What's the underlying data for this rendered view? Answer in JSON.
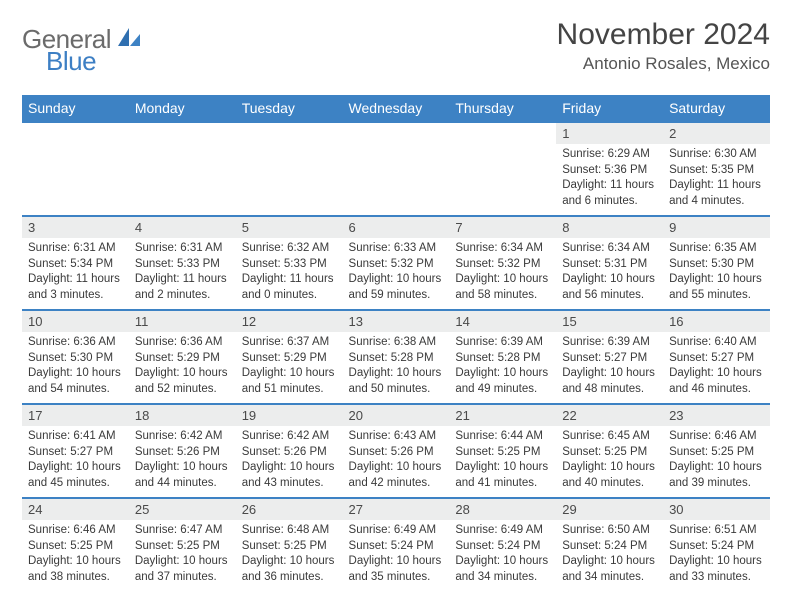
{
  "brand": {
    "word1": "General",
    "word2": "Blue"
  },
  "title": "November 2024",
  "location": "Antonio Rosales, Mexico",
  "colors": {
    "brand_blue": "#3d82c4",
    "logo_gray": "#6b6b6b",
    "header_bg": "#3d82c4",
    "header_fg": "#ffffff",
    "daynum_bg": "#eceded",
    "text": "#3a3a3a",
    "row_border": "#3d82c4"
  },
  "typography": {
    "title_fontsize": 30,
    "location_fontsize": 17,
    "dow_fontsize": 14,
    "daynum_fontsize": 13,
    "body_fontsize": 11.5
  },
  "days_of_week": [
    "Sunday",
    "Monday",
    "Tuesday",
    "Wednesday",
    "Thursday",
    "Friday",
    "Saturday"
  ],
  "weeks": [
    [
      {
        "empty": true
      },
      {
        "empty": true
      },
      {
        "empty": true
      },
      {
        "empty": true
      },
      {
        "empty": true
      },
      {
        "n": "1",
        "sunrise": "Sunrise: 6:29 AM",
        "sunset": "Sunset: 5:36 PM",
        "daylight": "Daylight: 11 hours and 6 minutes."
      },
      {
        "n": "2",
        "sunrise": "Sunrise: 6:30 AM",
        "sunset": "Sunset: 5:35 PM",
        "daylight": "Daylight: 11 hours and 4 minutes."
      }
    ],
    [
      {
        "n": "3",
        "sunrise": "Sunrise: 6:31 AM",
        "sunset": "Sunset: 5:34 PM",
        "daylight": "Daylight: 11 hours and 3 minutes."
      },
      {
        "n": "4",
        "sunrise": "Sunrise: 6:31 AM",
        "sunset": "Sunset: 5:33 PM",
        "daylight": "Daylight: 11 hours and 2 minutes."
      },
      {
        "n": "5",
        "sunrise": "Sunrise: 6:32 AM",
        "sunset": "Sunset: 5:33 PM",
        "daylight": "Daylight: 11 hours and 0 minutes."
      },
      {
        "n": "6",
        "sunrise": "Sunrise: 6:33 AM",
        "sunset": "Sunset: 5:32 PM",
        "daylight": "Daylight: 10 hours and 59 minutes."
      },
      {
        "n": "7",
        "sunrise": "Sunrise: 6:34 AM",
        "sunset": "Sunset: 5:32 PM",
        "daylight": "Daylight: 10 hours and 58 minutes."
      },
      {
        "n": "8",
        "sunrise": "Sunrise: 6:34 AM",
        "sunset": "Sunset: 5:31 PM",
        "daylight": "Daylight: 10 hours and 56 minutes."
      },
      {
        "n": "9",
        "sunrise": "Sunrise: 6:35 AM",
        "sunset": "Sunset: 5:30 PM",
        "daylight": "Daylight: 10 hours and 55 minutes."
      }
    ],
    [
      {
        "n": "10",
        "sunrise": "Sunrise: 6:36 AM",
        "sunset": "Sunset: 5:30 PM",
        "daylight": "Daylight: 10 hours and 54 minutes."
      },
      {
        "n": "11",
        "sunrise": "Sunrise: 6:36 AM",
        "sunset": "Sunset: 5:29 PM",
        "daylight": "Daylight: 10 hours and 52 minutes."
      },
      {
        "n": "12",
        "sunrise": "Sunrise: 6:37 AM",
        "sunset": "Sunset: 5:29 PM",
        "daylight": "Daylight: 10 hours and 51 minutes."
      },
      {
        "n": "13",
        "sunrise": "Sunrise: 6:38 AM",
        "sunset": "Sunset: 5:28 PM",
        "daylight": "Daylight: 10 hours and 50 minutes."
      },
      {
        "n": "14",
        "sunrise": "Sunrise: 6:39 AM",
        "sunset": "Sunset: 5:28 PM",
        "daylight": "Daylight: 10 hours and 49 minutes."
      },
      {
        "n": "15",
        "sunrise": "Sunrise: 6:39 AM",
        "sunset": "Sunset: 5:27 PM",
        "daylight": "Daylight: 10 hours and 48 minutes."
      },
      {
        "n": "16",
        "sunrise": "Sunrise: 6:40 AM",
        "sunset": "Sunset: 5:27 PM",
        "daylight": "Daylight: 10 hours and 46 minutes."
      }
    ],
    [
      {
        "n": "17",
        "sunrise": "Sunrise: 6:41 AM",
        "sunset": "Sunset: 5:27 PM",
        "daylight": "Daylight: 10 hours and 45 minutes."
      },
      {
        "n": "18",
        "sunrise": "Sunrise: 6:42 AM",
        "sunset": "Sunset: 5:26 PM",
        "daylight": "Daylight: 10 hours and 44 minutes."
      },
      {
        "n": "19",
        "sunrise": "Sunrise: 6:42 AM",
        "sunset": "Sunset: 5:26 PM",
        "daylight": "Daylight: 10 hours and 43 minutes."
      },
      {
        "n": "20",
        "sunrise": "Sunrise: 6:43 AM",
        "sunset": "Sunset: 5:26 PM",
        "daylight": "Daylight: 10 hours and 42 minutes."
      },
      {
        "n": "21",
        "sunrise": "Sunrise: 6:44 AM",
        "sunset": "Sunset: 5:25 PM",
        "daylight": "Daylight: 10 hours and 41 minutes."
      },
      {
        "n": "22",
        "sunrise": "Sunrise: 6:45 AM",
        "sunset": "Sunset: 5:25 PM",
        "daylight": "Daylight: 10 hours and 40 minutes."
      },
      {
        "n": "23",
        "sunrise": "Sunrise: 6:46 AM",
        "sunset": "Sunset: 5:25 PM",
        "daylight": "Daylight: 10 hours and 39 minutes."
      }
    ],
    [
      {
        "n": "24",
        "sunrise": "Sunrise: 6:46 AM",
        "sunset": "Sunset: 5:25 PM",
        "daylight": "Daylight: 10 hours and 38 minutes."
      },
      {
        "n": "25",
        "sunrise": "Sunrise: 6:47 AM",
        "sunset": "Sunset: 5:25 PM",
        "daylight": "Daylight: 10 hours and 37 minutes."
      },
      {
        "n": "26",
        "sunrise": "Sunrise: 6:48 AM",
        "sunset": "Sunset: 5:25 PM",
        "daylight": "Daylight: 10 hours and 36 minutes."
      },
      {
        "n": "27",
        "sunrise": "Sunrise: 6:49 AM",
        "sunset": "Sunset: 5:24 PM",
        "daylight": "Daylight: 10 hours and 35 minutes."
      },
      {
        "n": "28",
        "sunrise": "Sunrise: 6:49 AM",
        "sunset": "Sunset: 5:24 PM",
        "daylight": "Daylight: 10 hours and 34 minutes."
      },
      {
        "n": "29",
        "sunrise": "Sunrise: 6:50 AM",
        "sunset": "Sunset: 5:24 PM",
        "daylight": "Daylight: 10 hours and 34 minutes."
      },
      {
        "n": "30",
        "sunrise": "Sunrise: 6:51 AM",
        "sunset": "Sunset: 5:24 PM",
        "daylight": "Daylight: 10 hours and 33 minutes."
      }
    ]
  ]
}
